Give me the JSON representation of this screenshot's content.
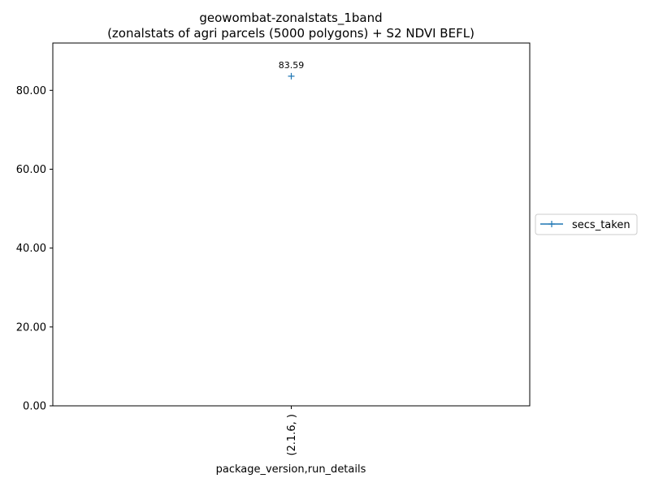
{
  "chart_data": {
    "type": "line",
    "title": "geowombat-zonalstats_1band",
    "subtitle": "(zonalstats of agri parcels (5000 polygons) + S2 NDVI BEFL)",
    "xlabel": "package_version,run_details",
    "ylabel": "",
    "categories": [
      "(2.1.6, )"
    ],
    "ylim": [
      0,
      92
    ],
    "yticks": [
      0,
      20,
      40,
      60,
      80
    ],
    "ytick_labels": [
      "0.00",
      "20.00",
      "40.00",
      "60.00",
      "80.00"
    ],
    "grid": false,
    "legend_position": "right",
    "series": [
      {
        "name": "secs_taken",
        "color": "#1f77b4",
        "marker": "+",
        "values": [
          83.59
        ],
        "data_labels": [
          "83.59"
        ]
      }
    ]
  }
}
